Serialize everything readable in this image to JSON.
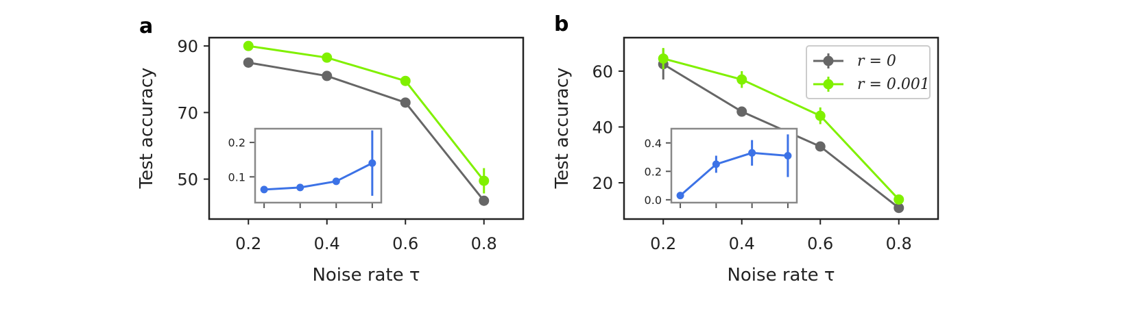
{
  "colors": {
    "gray": "#666666",
    "green": "#80f000",
    "blue": "#3c72e6"
  },
  "legend": [
    {
      "label": "r = 0",
      "color": "#666666"
    },
    {
      "label": "r = 0.001",
      "color": "#80f000"
    }
  ],
  "chart_data": [
    {
      "panel": "a",
      "type": "line",
      "xlabel": "Noise rate τ",
      "ylabel": "Test accuracy",
      "xlim": [
        0.1,
        0.9
      ],
      "ylim": [
        38,
        92.5
      ],
      "xticks": [
        0.2,
        0.4,
        0.6,
        0.8
      ],
      "xtick_labels": [
        "0.2",
        "0.4",
        "0.6",
        "0.8"
      ],
      "yticks": [
        50,
        70,
        90
      ],
      "ytick_labels": [
        "50",
        "70",
        "90"
      ],
      "series": [
        {
          "name": "r = 0",
          "color": "#666666",
          "x": [
            0.2,
            0.4,
            0.6,
            0.8
          ],
          "y": [
            85,
            81,
            73,
            43.5
          ],
          "err": [
            0.4,
            0.4,
            0.5,
            1.5
          ]
        },
        {
          "name": "r = 0.001",
          "color": "#80f000",
          "x": [
            0.2,
            0.4,
            0.6,
            0.8
          ],
          "y": [
            90,
            86.5,
            79.5,
            49.5
          ],
          "err": [
            0.4,
            0.4,
            0.4,
            3.8
          ]
        }
      ],
      "inset": {
        "color": "#3c72e6",
        "xlim": [
          0.15,
          0.85
        ],
        "ylim": [
          0.025,
          0.24
        ],
        "xticks": [
          0.2,
          0.4,
          0.6,
          0.8
        ],
        "yticks": [
          0.1,
          0.2
        ],
        "ytick_labels": [
          "0.1",
          "0.2"
        ],
        "x": [
          0.2,
          0.4,
          0.6,
          0.8
        ],
        "y": [
          0.063,
          0.069,
          0.087,
          0.14
        ],
        "err": [
          0.002,
          0.002,
          0.003,
          0.095
        ]
      }
    },
    {
      "panel": "b",
      "type": "line",
      "xlabel": "Noise rate τ",
      "ylabel": "Test accuracy",
      "xlim": [
        0.1,
        0.9
      ],
      "ylim": [
        7,
        72
      ],
      "xticks": [
        0.2,
        0.4,
        0.6,
        0.8
      ],
      "xtick_labels": [
        "0.2",
        "0.4",
        "0.6",
        "0.8"
      ],
      "yticks": [
        20,
        40,
        60
      ],
      "ytick_labels": [
        "20",
        "40",
        "60"
      ],
      "series": [
        {
          "name": "r = 0",
          "color": "#666666",
          "x": [
            0.2,
            0.4,
            0.6,
            0.8
          ],
          "y": [
            62.5,
            45.5,
            33,
            11
          ],
          "err": [
            5.5,
            1.8,
            1.0,
            0.8
          ]
        },
        {
          "name": "r = 0.001",
          "color": "#80f000",
          "x": [
            0.2,
            0.4,
            0.6,
            0.8
          ],
          "y": [
            64.5,
            57,
            44,
            14
          ],
          "err": [
            3.8,
            3.0,
            3.0,
            1.2
          ]
        }
      ],
      "inset": {
        "color": "#3c72e6",
        "xlim": [
          0.15,
          0.85
        ],
        "ylim": [
          -0.02,
          0.5
        ],
        "xticks": [
          0.2,
          0.4,
          0.6,
          0.8
        ],
        "yticks": [
          0.0,
          0.2,
          0.4
        ],
        "ytick_labels": [
          "0.0",
          "0.2",
          "0.4"
        ],
        "x": [
          0.2,
          0.4,
          0.6,
          0.8
        ],
        "y": [
          0.03,
          0.25,
          0.33,
          0.31
        ],
        "err": [
          0.01,
          0.06,
          0.09,
          0.15
        ]
      }
    }
  ]
}
